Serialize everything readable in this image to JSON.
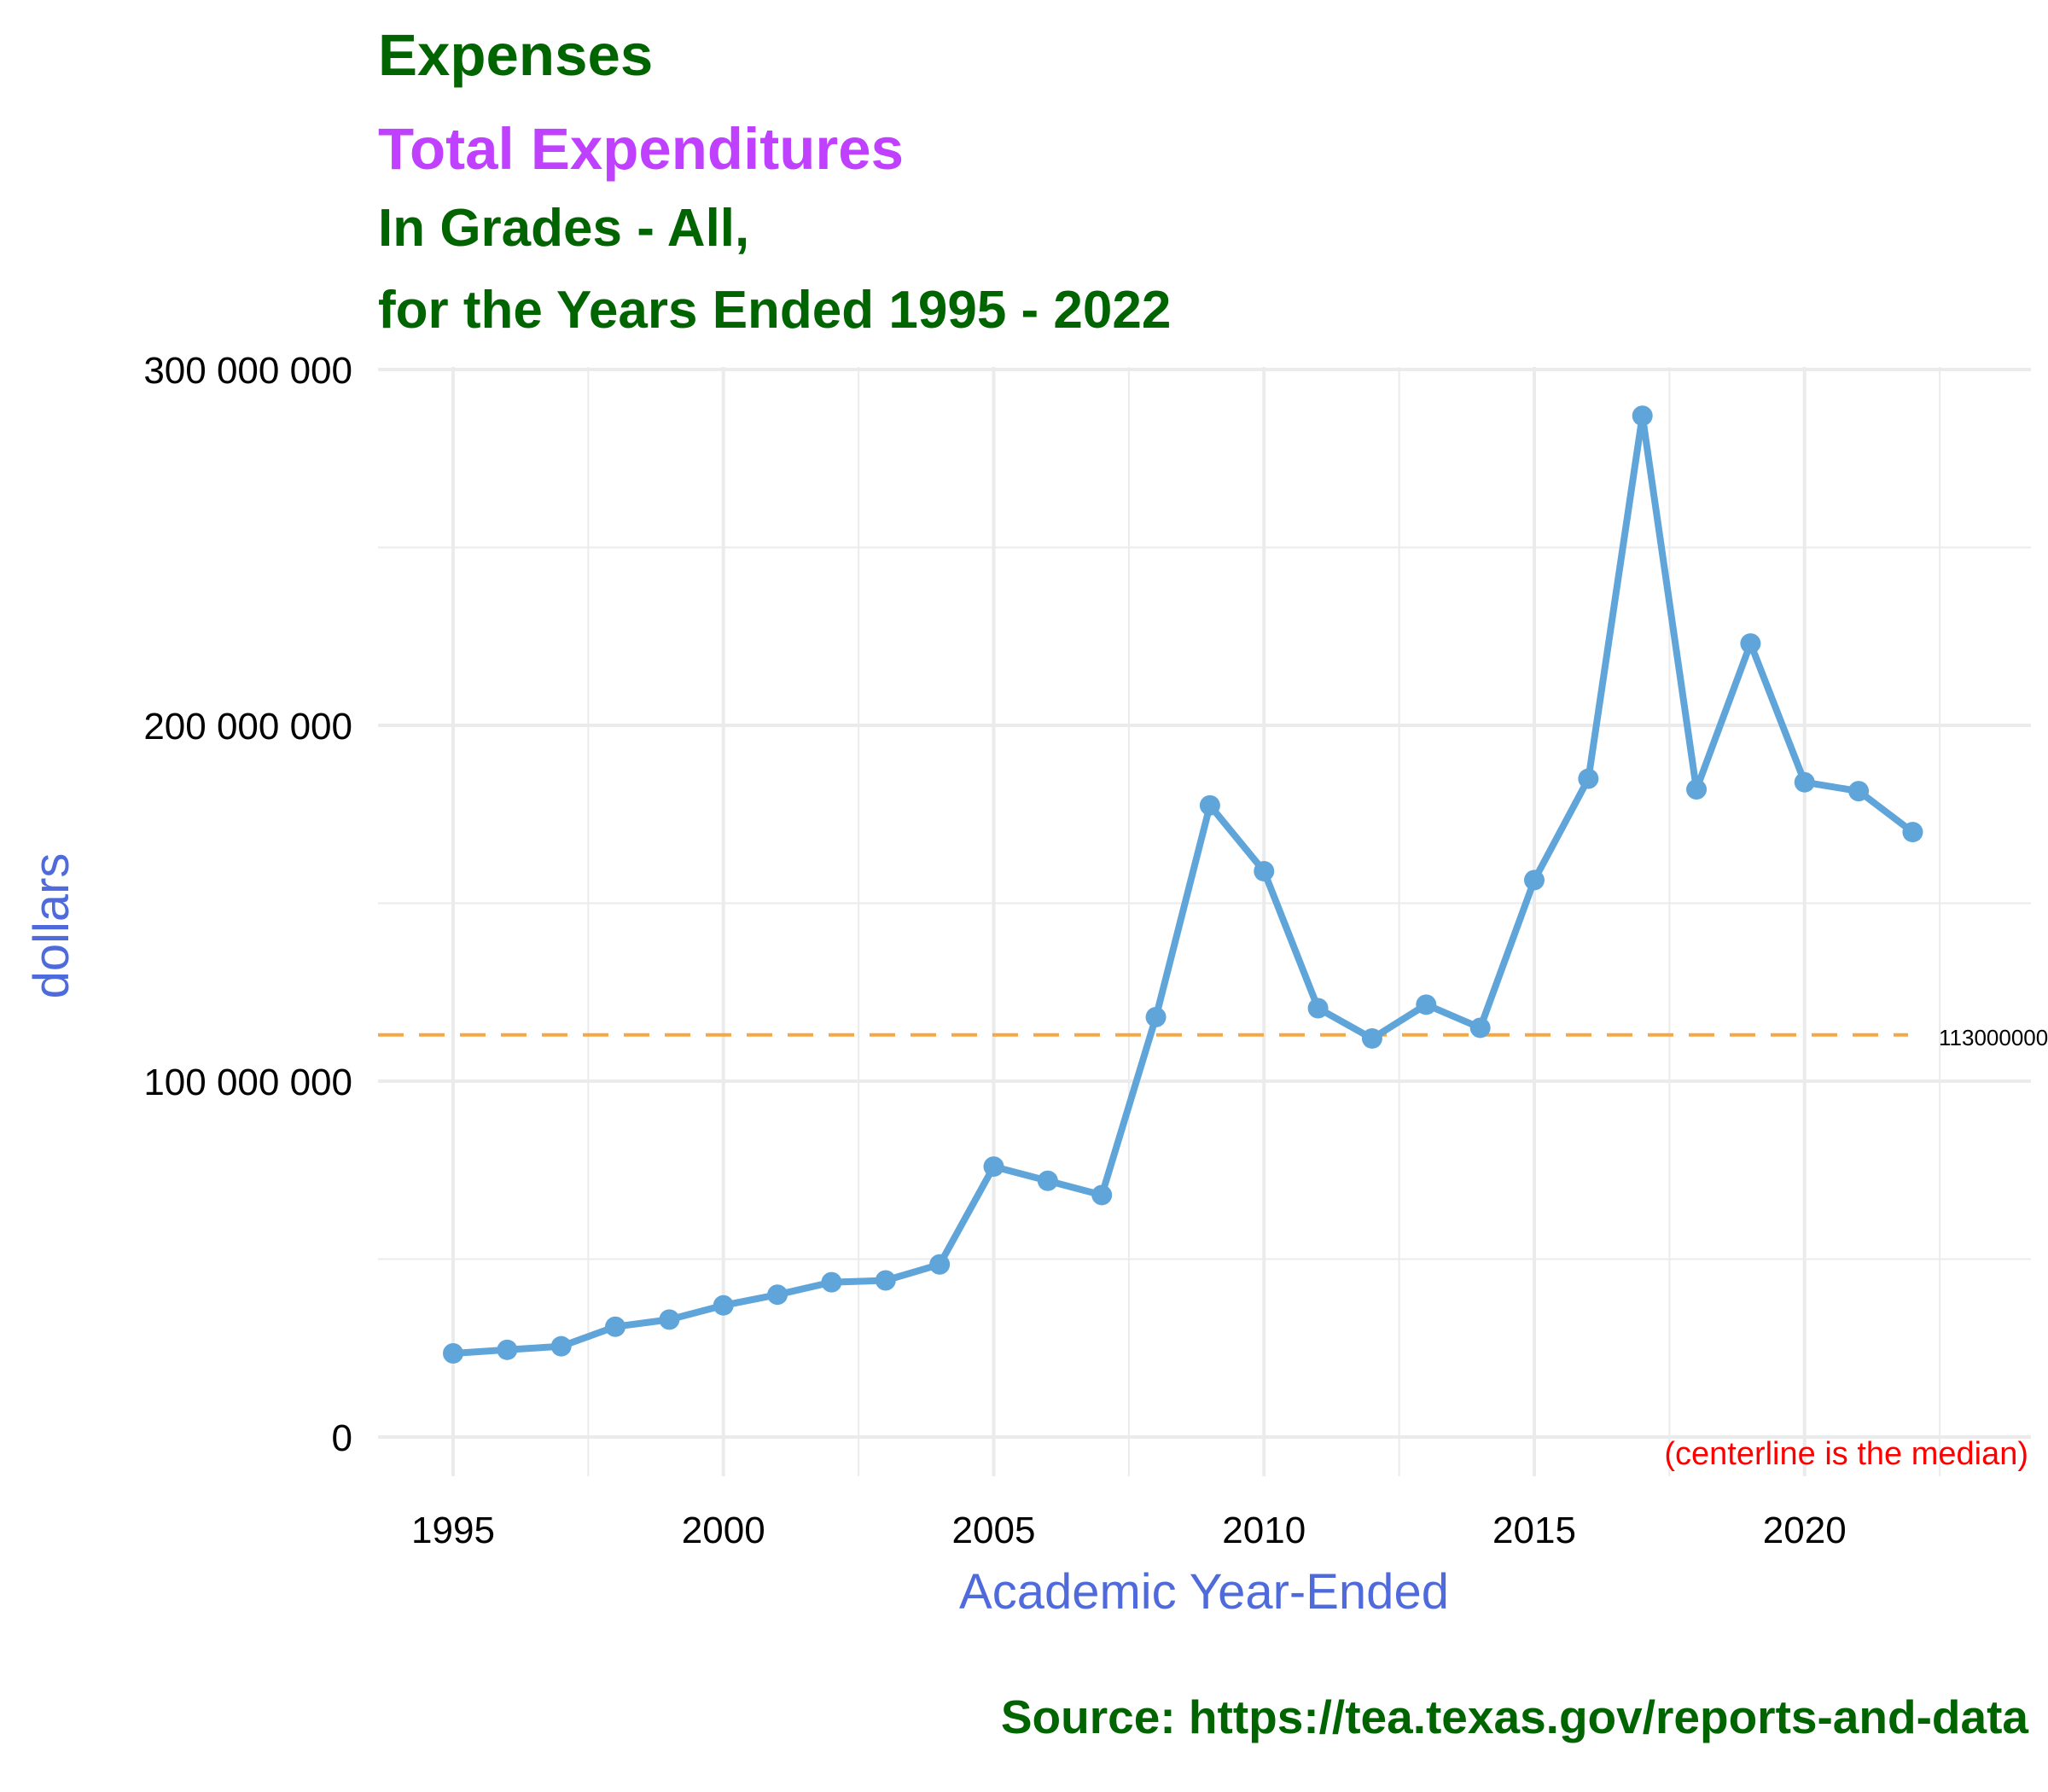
{
  "titles": {
    "title": "Expenses",
    "subtitle_1": "Total Expenditures",
    "subtitle_2": "In Grades - All,",
    "subtitle_3": "for the Years Ended 1995 - 2022"
  },
  "caption": "Source:  https://tea.texas.gov/reports-and-data",
  "note": "(centerline is the median)",
  "median_label": "113000000",
  "colors": {
    "title": "#006400",
    "subtitle_accent": "#BF40FF",
    "axis_title": "#4F6BDB",
    "series": "#5FA5DA",
    "median_line": "#F5A742",
    "note": "#FF0000",
    "grid": "#EBEBEB"
  },
  "chart_data": {
    "type": "line",
    "title": "Expenses",
    "subtitle": "Total Expenditures",
    "xlabel": "Academic Year-Ended",
    "ylabel": "dollars",
    "x": [
      1995,
      1996,
      1997,
      1998,
      1999,
      2000,
      2001,
      2002,
      2003,
      2004,
      2005,
      2006,
      2007,
      2008,
      2009,
      2010,
      2011,
      2012,
      2013,
      2014,
      2015,
      2016,
      2017,
      2018,
      2019,
      2020,
      2021,
      2022
    ],
    "series": [
      {
        "values": [
          23500000,
          24500000,
          25500000,
          31000000,
          33000000,
          37000000,
          40000000,
          43500000,
          44000000,
          48500000,
          76000000,
          72000000,
          68000000,
          118000000,
          177500000,
          159000000,
          120500000,
          112000000,
          121500000,
          115000000,
          156500000,
          185000000,
          287000000,
          182000000,
          223000000,
          184000000,
          181500000,
          170000000
        ]
      }
    ],
    "median": 113000000,
    "xlim": [
      1993.6,
      2024.3
    ],
    "ylim": [
      -10000000,
      300000000
    ],
    "x_ticks": [
      1995,
      2000,
      2005,
      2010,
      2015,
      2020
    ],
    "x_tick_labels": [
      "1995",
      "2000",
      "2005",
      "2010",
      "2015",
      "2020"
    ],
    "y_ticks": [
      0,
      100000000,
      200000000,
      300000000
    ],
    "y_tick_labels": [
      "0",
      "100 000 000",
      "200 000 000",
      "300 000 000"
    ],
    "grid": true,
    "legend": "none"
  }
}
